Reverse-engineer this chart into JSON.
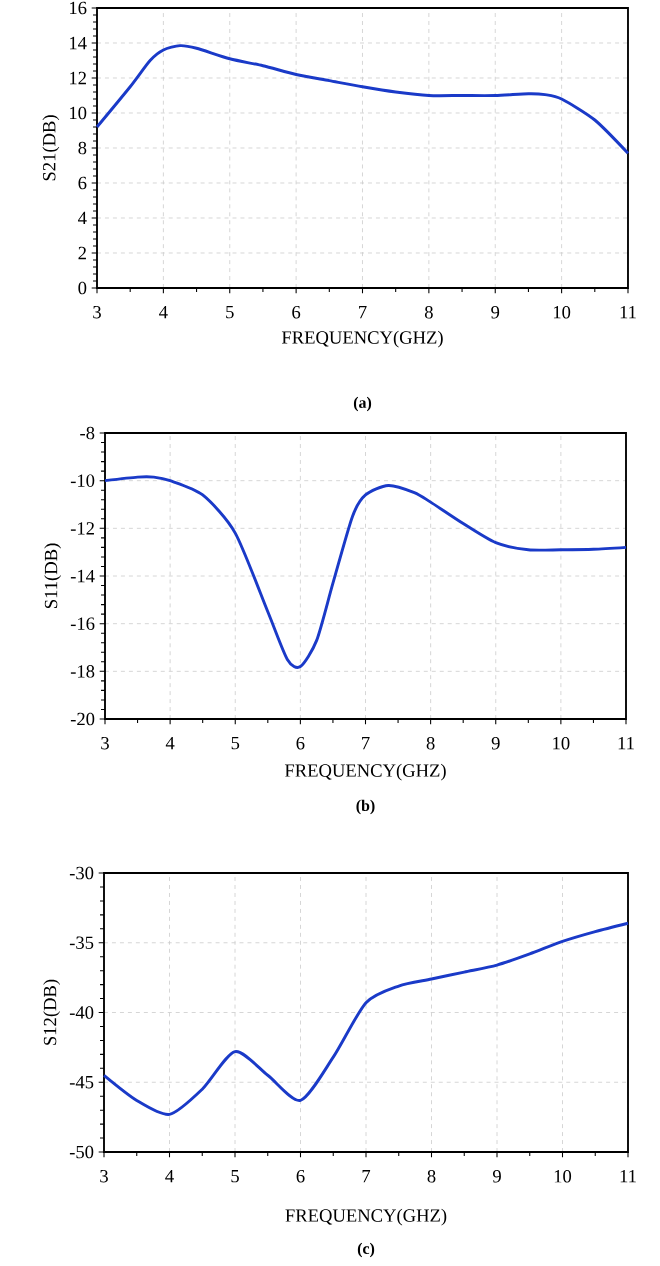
{
  "chart_data": [
    {
      "type": "line",
      "xlabel": "FREQUENCY(GHZ)",
      "ylabel": "S21(DB)",
      "annotations": [
        "(a)"
      ],
      "color": "#1a3ac8",
      "grid": true,
      "x": [
        3,
        3.5,
        3.8,
        4,
        4.25,
        4.5,
        5,
        5.5,
        6,
        6.5,
        7,
        7.5,
        8,
        8.5,
        9,
        9.5,
        9.75,
        10,
        10.5,
        11
      ],
      "values": [
        9.2,
        11.5,
        13.0,
        13.6,
        13.85,
        13.7,
        13.1,
        12.7,
        12.2,
        11.85,
        11.5,
        11.2,
        11.0,
        11.0,
        11.0,
        11.1,
        11.05,
        10.8,
        9.6,
        7.7
      ],
      "xlim": [
        3,
        11
      ],
      "ylim": [
        0,
        16
      ],
      "xticks": [
        3,
        4,
        5,
        6,
        7,
        8,
        9,
        10,
        11
      ],
      "yticks": [
        0,
        2,
        4,
        6,
        8,
        10,
        12,
        14,
        16
      ]
    },
    {
      "type": "line",
      "xlabel": "FREQUENCY(GHZ)",
      "ylabel": "S11(DB)",
      "annotations": [
        "(b)"
      ],
      "color": "#1a3ac8",
      "grid": true,
      "x": [
        3,
        3.5,
        3.75,
        4,
        4.5,
        5,
        5.5,
        5.8,
        6,
        6.25,
        6.5,
        6.8,
        7,
        7.35,
        7.75,
        8,
        8.5,
        9,
        9.5,
        10,
        10.5,
        11
      ],
      "values": [
        -10.0,
        -9.85,
        -9.85,
        -10.0,
        -10.6,
        -12.2,
        -15.5,
        -17.5,
        -17.8,
        -16.7,
        -14.3,
        -11.5,
        -10.6,
        -10.2,
        -10.5,
        -10.9,
        -11.8,
        -12.6,
        -12.9,
        -12.9,
        -12.88,
        -12.8
      ],
      "xlim": [
        3,
        11
      ],
      "ylim": [
        -20,
        -8
      ],
      "xticks": [
        3,
        4,
        5,
        6,
        7,
        8,
        9,
        10,
        11
      ],
      "yticks": [
        -20,
        -18,
        -16,
        -14,
        -12,
        -10,
        -8
      ]
    },
    {
      "type": "line",
      "xlabel": "FREQUENCY(GHZ)",
      "ylabel": "S12(DB)",
      "annotations": [
        "(c)"
      ],
      "color": "#1a3ac8",
      "grid": true,
      "x": [
        3,
        3.5,
        4,
        4.5,
        5,
        5.5,
        6,
        6.5,
        7,
        7.5,
        8,
        8.5,
        9,
        9.5,
        10,
        10.5,
        11
      ],
      "values": [
        -44.5,
        -46.3,
        -47.3,
        -45.5,
        -42.8,
        -44.5,
        -46.3,
        -43.2,
        -39.3,
        -38.1,
        -37.6,
        -37.1,
        -36.6,
        -35.8,
        -34.9,
        -34.2,
        -33.6
      ],
      "xlim": [
        3,
        11
      ],
      "ylim": [
        -50,
        -30
      ],
      "xticks": [
        3,
        4,
        5,
        6,
        7,
        8,
        9,
        10,
        11
      ],
      "yticks": [
        -50,
        -45,
        -40,
        -35,
        -30
      ]
    }
  ]
}
